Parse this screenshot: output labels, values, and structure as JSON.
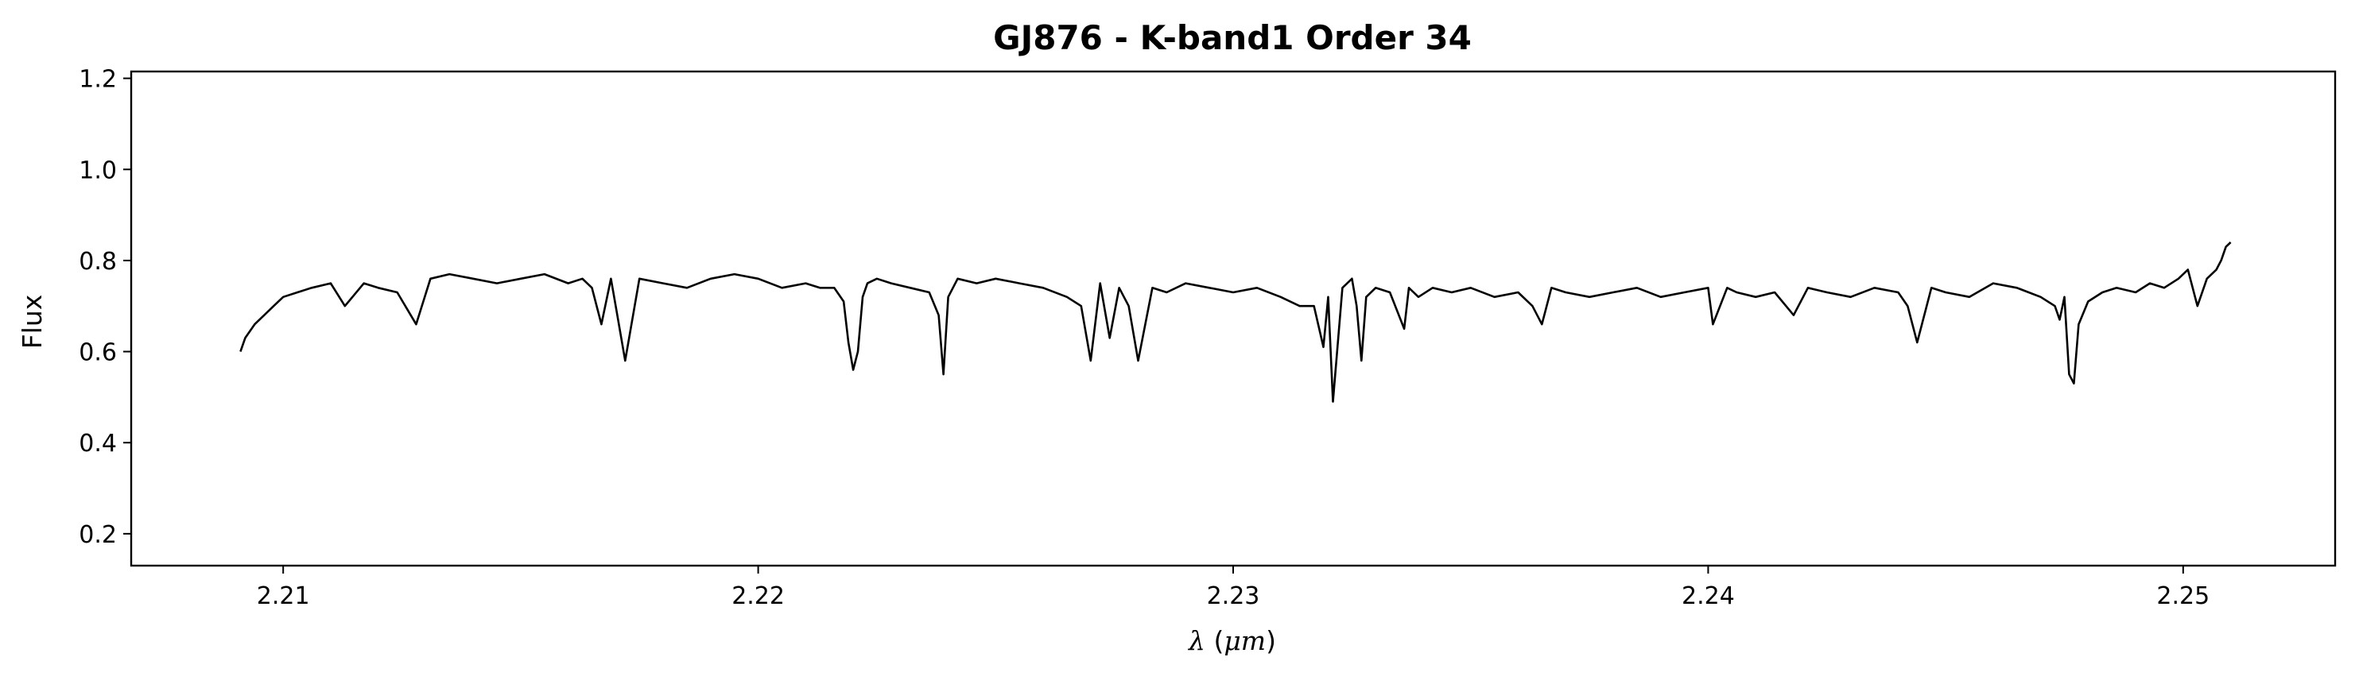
{
  "chart_data": {
    "type": "line",
    "title": "GJ876 - K-band1 Order 34",
    "xlabel": "λ (μm)",
    "ylabel": "Flux",
    "xlim": [
      2.2068,
      2.2532
    ],
    "ylim": [
      0.13,
      1.215
    ],
    "xticks": [
      2.21,
      2.22,
      2.23,
      2.24,
      2.25
    ],
    "xtick_labels": [
      "2.21",
      "2.22",
      "2.23",
      "2.24",
      "2.25"
    ],
    "yticks": [
      0.2,
      0.4,
      0.6,
      0.8,
      1.0,
      1.2
    ],
    "ytick_labels": [
      "0.2",
      "0.4",
      "0.6",
      "0.8",
      "1.0",
      "1.2"
    ],
    "grid": false,
    "line_color": "#000000",
    "series": [
      {
        "x": [
          2.2091,
          2.2092,
          2.2094,
          2.2096,
          2.2098,
          2.21,
          2.2103,
          2.2106,
          2.211,
          2.2113,
          2.2117,
          2.212,
          2.2124,
          2.2128,
          2.2131,
          2.2135,
          2.214,
          2.2145,
          2.215,
          2.2155,
          2.216,
          2.2163,
          2.2165,
          2.2167,
          2.2169,
          2.217,
          2.2172,
          2.2175,
          2.218,
          2.2185,
          2.219,
          2.2195,
          2.22,
          2.2205,
          2.221,
          2.2213,
          2.2216,
          2.2218,
          2.2219,
          2.222,
          2.2221,
          2.2222,
          2.2223,
          2.2225,
          2.2228,
          2.2232,
          2.2236,
          2.2238,
          2.2239,
          2.224,
          2.2242,
          2.2246,
          2.225,
          2.2255,
          2.226,
          2.2265,
          2.2268,
          2.227,
          2.2272,
          2.2274,
          2.2276,
          2.2278,
          2.228,
          2.2283,
          2.2286,
          2.229,
          2.2295,
          2.23,
          2.2305,
          2.231,
          2.2314,
          2.2317,
          2.2319,
          2.232,
          2.2321,
          2.2323,
          2.2325,
          2.2326,
          2.2327,
          2.2328,
          2.233,
          2.2333,
          2.2336,
          2.2337,
          2.2339,
          2.2342,
          2.2346,
          2.235,
          2.2355,
          2.236,
          2.2363,
          2.2365,
          2.2367,
          2.237,
          2.2375,
          2.238,
          2.2385,
          2.239,
          2.2395,
          2.24,
          2.2401,
          2.2404,
          2.2406,
          2.241,
          2.2414,
          2.2418,
          2.2421,
          2.2425,
          2.243,
          2.2435,
          2.244,
          2.2442,
          2.2444,
          2.2447,
          2.245,
          2.2455,
          2.246,
          2.2465,
          2.247,
          2.2473,
          2.2474,
          2.2475,
          2.2476,
          2.2477,
          2.2478,
          2.248,
          2.2483,
          2.2486,
          2.249,
          2.2493,
          2.2496,
          2.2499,
          2.2501,
          2.2503,
          2.2505,
          2.2507,
          2.2508,
          2.2509,
          2.251
        ],
        "y": [
          0.6,
          0.63,
          0.66,
          0.68,
          0.7,
          0.72,
          0.73,
          0.74,
          0.75,
          0.7,
          0.75,
          0.74,
          0.73,
          0.66,
          0.76,
          0.77,
          0.76,
          0.75,
          0.76,
          0.77,
          0.75,
          0.76,
          0.74,
          0.66,
          0.76,
          0.7,
          0.58,
          0.76,
          0.75,
          0.74,
          0.76,
          0.77,
          0.76,
          0.74,
          0.75,
          0.74,
          0.74,
          0.71,
          0.62,
          0.56,
          0.6,
          0.72,
          0.75,
          0.76,
          0.75,
          0.74,
          0.73,
          0.68,
          0.55,
          0.72,
          0.76,
          0.75,
          0.76,
          0.75,
          0.74,
          0.72,
          0.7,
          0.58,
          0.75,
          0.63,
          0.74,
          0.7,
          0.58,
          0.74,
          0.73,
          0.75,
          0.74,
          0.73,
          0.74,
          0.72,
          0.7,
          0.7,
          0.61,
          0.72,
          0.49,
          0.74,
          0.76,
          0.7,
          0.58,
          0.72,
          0.74,
          0.73,
          0.65,
          0.74,
          0.72,
          0.74,
          0.73,
          0.74,
          0.72,
          0.73,
          0.7,
          0.66,
          0.74,
          0.73,
          0.72,
          0.73,
          0.74,
          0.72,
          0.73,
          0.74,
          0.66,
          0.74,
          0.73,
          0.72,
          0.73,
          0.68,
          0.74,
          0.73,
          0.72,
          0.74,
          0.73,
          0.7,
          0.62,
          0.74,
          0.73,
          0.72,
          0.75,
          0.74,
          0.72,
          0.7,
          0.67,
          0.72,
          0.55,
          0.53,
          0.66,
          0.71,
          0.73,
          0.74,
          0.73,
          0.75,
          0.74,
          0.76,
          0.78,
          0.7,
          0.76,
          0.78,
          0.8,
          0.83,
          0.84
        ]
      }
    ]
  }
}
